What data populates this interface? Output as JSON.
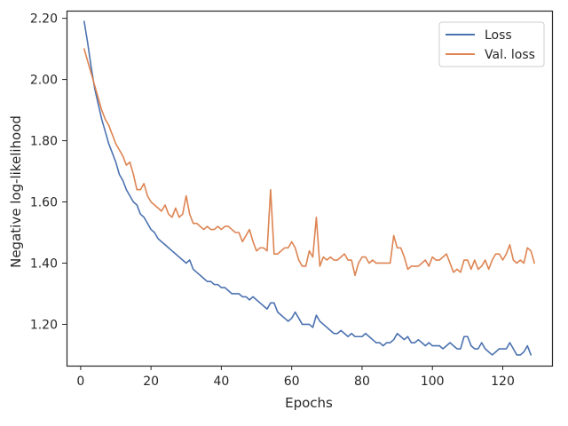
{
  "chart_data": {
    "type": "line",
    "title": "",
    "xlabel": "Epochs",
    "ylabel": "Negative log-likelihood",
    "xlim": [
      -4,
      134
    ],
    "ylim": [
      1.065,
      2.225
    ],
    "x_ticks": [
      0,
      20,
      40,
      60,
      80,
      100,
      120
    ],
    "x_tick_labels": [
      "0",
      "20",
      "40",
      "60",
      "80",
      "100",
      "120"
    ],
    "y_ticks": [
      1.2,
      1.4,
      1.6,
      1.8,
      2.0,
      2.2
    ],
    "y_tick_labels": [
      "1.20",
      "1.40",
      "1.60",
      "1.80",
      "2.00",
      "2.20"
    ],
    "grid": false,
    "legend_position": "top-right",
    "series": [
      {
        "name": "Loss",
        "color": "#4c72b0",
        "x_start": 1,
        "values": [
          2.19,
          2.12,
          2.04,
          1.97,
          1.92,
          1.87,
          1.83,
          1.79,
          1.76,
          1.73,
          1.69,
          1.67,
          1.64,
          1.62,
          1.6,
          1.59,
          1.56,
          1.55,
          1.53,
          1.51,
          1.5,
          1.48,
          1.47,
          1.46,
          1.45,
          1.44,
          1.43,
          1.42,
          1.41,
          1.4,
          1.41,
          1.38,
          1.37,
          1.36,
          1.35,
          1.34,
          1.34,
          1.33,
          1.33,
          1.32,
          1.32,
          1.31,
          1.3,
          1.3,
          1.3,
          1.29,
          1.29,
          1.28,
          1.29,
          1.28,
          1.27,
          1.26,
          1.25,
          1.27,
          1.27,
          1.24,
          1.23,
          1.22,
          1.21,
          1.22,
          1.24,
          1.22,
          1.2,
          1.2,
          1.2,
          1.19,
          1.23,
          1.21,
          1.2,
          1.19,
          1.18,
          1.17,
          1.17,
          1.18,
          1.17,
          1.16,
          1.17,
          1.16,
          1.16,
          1.16,
          1.17,
          1.16,
          1.15,
          1.14,
          1.14,
          1.13,
          1.14,
          1.14,
          1.15,
          1.17,
          1.16,
          1.15,
          1.16,
          1.14,
          1.14,
          1.15,
          1.14,
          1.13,
          1.14,
          1.13,
          1.13,
          1.13,
          1.12,
          1.13,
          1.14,
          1.13,
          1.12,
          1.12,
          1.16,
          1.16,
          1.13,
          1.12,
          1.12,
          1.14,
          1.12,
          1.11,
          1.1,
          1.11,
          1.12,
          1.12,
          1.12,
          1.14,
          1.12,
          1.1,
          1.1,
          1.11,
          1.13,
          1.1
        ]
      },
      {
        "name": "Val. loss",
        "color": "#dd8452",
        "x_start": 1,
        "values": [
          2.1,
          2.06,
          2.02,
          1.98,
          1.94,
          1.9,
          1.87,
          1.85,
          1.82,
          1.79,
          1.77,
          1.75,
          1.72,
          1.73,
          1.69,
          1.64,
          1.64,
          1.66,
          1.62,
          1.6,
          1.59,
          1.58,
          1.57,
          1.59,
          1.56,
          1.55,
          1.58,
          1.55,
          1.56,
          1.62,
          1.56,
          1.53,
          1.53,
          1.52,
          1.51,
          1.52,
          1.51,
          1.51,
          1.52,
          1.51,
          1.52,
          1.52,
          1.51,
          1.5,
          1.5,
          1.47,
          1.49,
          1.51,
          1.47,
          1.44,
          1.45,
          1.45,
          1.44,
          1.64,
          1.43,
          1.43,
          1.44,
          1.45,
          1.45,
          1.47,
          1.45,
          1.41,
          1.39,
          1.39,
          1.44,
          1.42,
          1.55,
          1.39,
          1.42,
          1.41,
          1.42,
          1.41,
          1.41,
          1.42,
          1.43,
          1.41,
          1.41,
          1.36,
          1.4,
          1.42,
          1.42,
          1.4,
          1.41,
          1.4,
          1.4,
          1.4,
          1.4,
          1.4,
          1.49,
          1.45,
          1.45,
          1.42,
          1.38,
          1.39,
          1.39,
          1.39,
          1.4,
          1.41,
          1.39,
          1.42,
          1.41,
          1.41,
          1.42,
          1.43,
          1.4,
          1.37,
          1.38,
          1.37,
          1.41,
          1.41,
          1.38,
          1.41,
          1.38,
          1.39,
          1.41,
          1.38,
          1.41,
          1.43,
          1.43,
          1.41,
          1.43,
          1.46,
          1.41,
          1.4,
          1.41,
          1.4,
          1.45,
          1.44,
          1.4
        ]
      }
    ]
  }
}
